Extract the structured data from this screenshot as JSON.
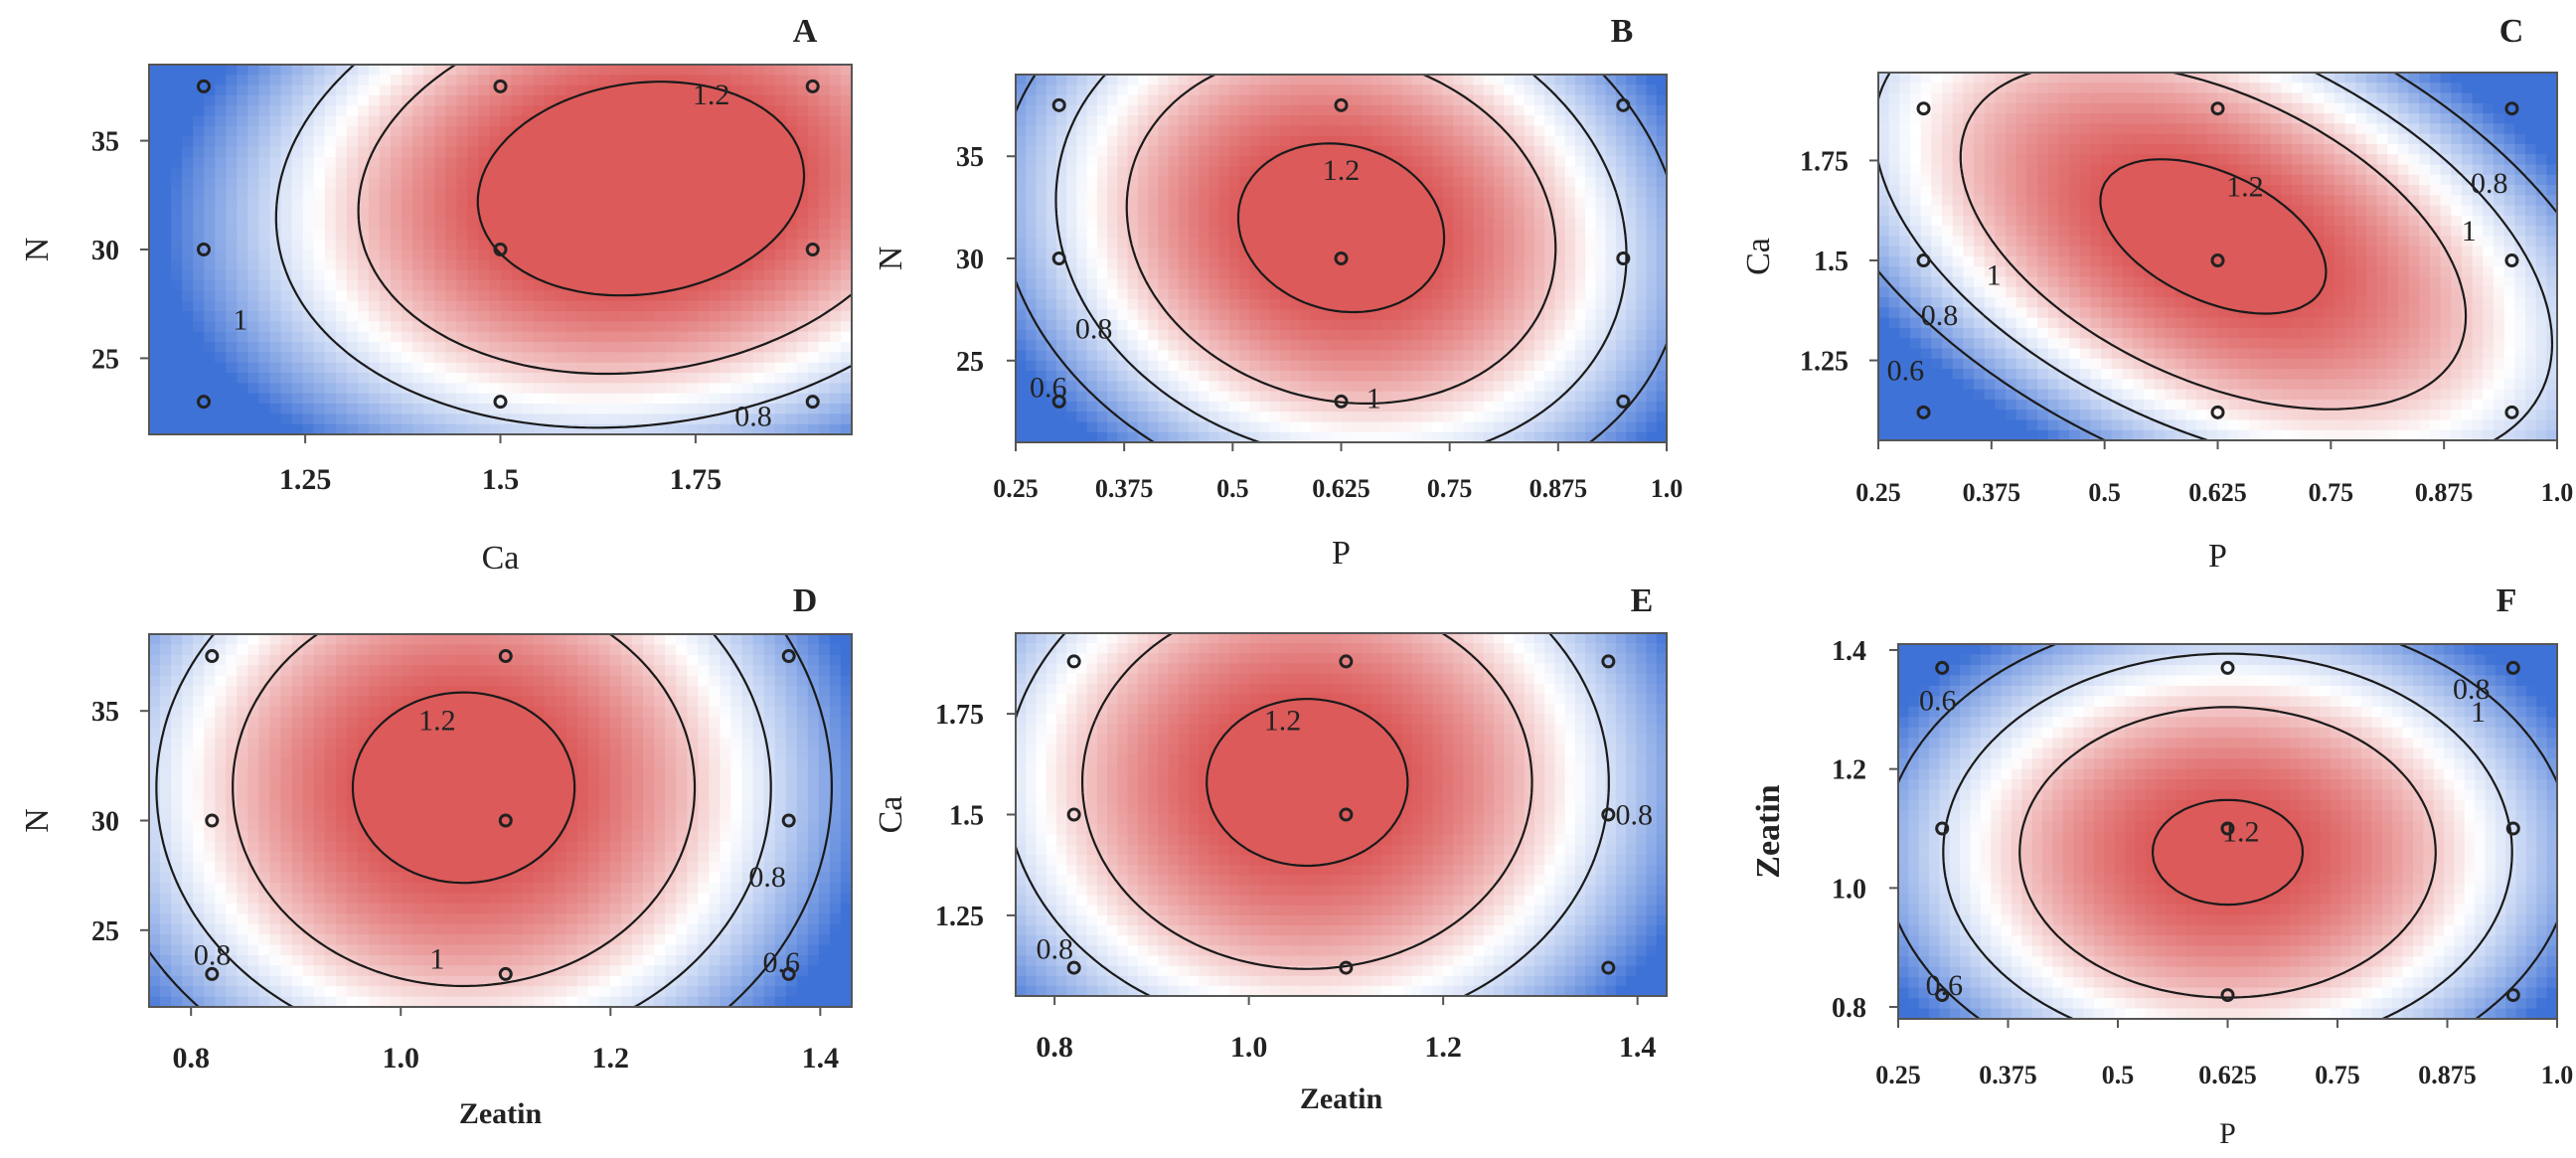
{
  "figure": {
    "colors": {
      "low": "#3f72d6",
      "mid": "#ffffff",
      "high": "#dc5a5a",
      "contour": "#1a1a1a",
      "point": "#222222"
    }
  },
  "chart_data": [
    {
      "panel": "A",
      "type": "contour",
      "xlabel": "Ca",
      "ylabel": "N",
      "xlim": [
        1.05,
        1.95
      ],
      "ylim": [
        21.5,
        38.5
      ],
      "xticks": [
        1.25,
        1.5,
        1.75
      ],
      "xticklabels": [
        "1.25",
        "1.5",
        "1.75"
      ],
      "yticks": [
        25,
        30,
        35
      ],
      "yticklabels": [
        "25",
        "30",
        "35"
      ],
      "levels": [
        0.8,
        1,
        1.2
      ],
      "contour_labels": [
        "1.2",
        "1",
        "0.8"
      ],
      "design_points": [
        [
          1.12,
          23
        ],
        [
          1.5,
          23
        ],
        [
          1.9,
          23
        ],
        [
          1.12,
          30
        ],
        [
          1.5,
          30
        ],
        [
          1.9,
          30
        ],
        [
          1.12,
          37.5
        ],
        [
          1.5,
          37.5
        ],
        [
          1.9,
          37.5
        ]
      ],
      "model": {
        "x0": 1.68,
        "y0": 32.8,
        "ax": 0.42,
        "ay": 10.2,
        "rot": 0.25,
        "peak": 1.3
      }
    },
    {
      "panel": "B",
      "type": "contour",
      "xlabel": "P",
      "ylabel": "N",
      "xlim": [
        0.25,
        1.0
      ],
      "ylim": [
        21,
        39
      ],
      "xticks": [
        0.25,
        0.375,
        0.5,
        0.625,
        0.75,
        0.875,
        1.0
      ],
      "xticklabels": [
        "0.25",
        "0.375",
        "0.5",
        "0.625",
        "0.75",
        "0.875",
        "1.0"
      ],
      "yticks": [
        25,
        30,
        35
      ],
      "yticklabels": [
        "25",
        "30",
        "35"
      ],
      "levels": [
        0.6,
        0.8,
        1,
        1.2
      ],
      "contour_labels": [
        "1.2",
        "0.8",
        "0.6",
        "1"
      ],
      "design_points": [
        [
          0.3,
          23
        ],
        [
          0.625,
          23
        ],
        [
          0.95,
          23
        ],
        [
          0.3,
          30
        ],
        [
          0.625,
          30
        ],
        [
          0.95,
          30
        ],
        [
          0.3,
          37.5
        ],
        [
          0.625,
          37.5
        ],
        [
          0.95,
          37.5
        ]
      ],
      "model": {
        "x0": 0.625,
        "y0": 31.5,
        "ax": 0.31,
        "ay": 11,
        "rot": -0.15,
        "peak": 1.26
      }
    },
    {
      "panel": "C",
      "type": "contour",
      "xlabel": "P",
      "ylabel": "Ca",
      "xlim": [
        0.25,
        1.0
      ],
      "ylim": [
        1.05,
        1.97
      ],
      "xticks": [
        0.25,
        0.375,
        0.5,
        0.625,
        0.75,
        0.875,
        1.0
      ],
      "xticklabels": [
        "0.25",
        "0.375",
        "0.5",
        "0.625",
        "0.75",
        "0.875",
        "1.0"
      ],
      "yticks": [
        1.25,
        1.5,
        1.75
      ],
      "yticklabels": [
        "1.25",
        "1.5",
        "1.75"
      ],
      "levels": [
        0.6,
        0.8,
        1,
        1.2
      ],
      "contour_labels": [
        "1.2",
        "0.8",
        "1",
        "0.8",
        "0.6",
        "1"
      ],
      "design_points": [
        [
          0.3,
          1.12
        ],
        [
          0.625,
          1.12
        ],
        [
          0.95,
          1.12
        ],
        [
          0.3,
          1.5
        ],
        [
          0.625,
          1.5
        ],
        [
          0.95,
          1.5
        ],
        [
          0.3,
          1.88
        ],
        [
          0.625,
          1.88
        ],
        [
          0.95,
          1.88
        ]
      ],
      "model": {
        "x0": 0.62,
        "y0": 1.56,
        "ax": 0.29,
        "ay": 0.62,
        "rot": -0.55,
        "peak": 1.25
      }
    },
    {
      "panel": "D",
      "type": "contour",
      "xlabel": "Zeatin",
      "ylabel": "N",
      "xlim": [
        0.76,
        1.43
      ],
      "ylim": [
        21.5,
        38.5
      ],
      "xticks": [
        0.8,
        1.0,
        1.2,
        1.4
      ],
      "xticklabels": [
        "0.8",
        "1.0",
        "1.2",
        "1.4"
      ],
      "yticks": [
        25,
        30,
        35
      ],
      "yticklabels": [
        "25",
        "30",
        "35"
      ],
      "levels": [
        0.6,
        0.8,
        1,
        1.2
      ],
      "contour_labels": [
        "1.2",
        "1",
        "0.8",
        "0.8",
        "0.6"
      ],
      "design_points": [
        [
          0.82,
          23
        ],
        [
          1.1,
          23
        ],
        [
          1.37,
          23
        ],
        [
          0.82,
          30
        ],
        [
          1.1,
          30
        ],
        [
          1.37,
          30
        ],
        [
          0.82,
          37.5
        ],
        [
          1.1,
          37.5
        ],
        [
          1.37,
          37.5
        ]
      ],
      "model": {
        "x0": 1.06,
        "y0": 31.5,
        "ax": 0.28,
        "ay": 11.5,
        "rot": 0,
        "peak": 1.26
      }
    },
    {
      "panel": "E",
      "type": "contour",
      "xlabel": "Zeatin",
      "ylabel": "Ca",
      "xlim": [
        0.76,
        1.43
      ],
      "ylim": [
        1.05,
        1.95
      ],
      "xticks": [
        0.8,
        1.0,
        1.2,
        1.4
      ],
      "xticklabels": [
        "0.8",
        "1.0",
        "1.2",
        "1.4"
      ],
      "yticks": [
        1.25,
        1.5,
        1.75
      ],
      "yticklabels": [
        "1.25",
        "1.5",
        "1.75"
      ],
      "levels": [
        0.8,
        1,
        1.2
      ],
      "contour_labels": [
        "1.2",
        "0.8",
        "0.8"
      ],
      "design_points": [
        [
          0.82,
          1.12
        ],
        [
          1.1,
          1.12
        ],
        [
          1.37,
          1.12
        ],
        [
          0.82,
          1.5
        ],
        [
          1.1,
          1.5
        ],
        [
          1.37,
          1.5
        ],
        [
          0.82,
          1.88
        ],
        [
          1.1,
          1.88
        ],
        [
          1.37,
          1.88
        ]
      ],
      "model": {
        "x0": 1.06,
        "y0": 1.58,
        "ax": 0.3,
        "ay": 0.6,
        "rot": 0,
        "peak": 1.25
      }
    },
    {
      "panel": "F",
      "type": "contour",
      "xlabel": "P",
      "ylabel": "Zeatin",
      "xlim": [
        0.25,
        1.0
      ],
      "ylim": [
        0.78,
        1.41
      ],
      "xticks": [
        0.25,
        0.375,
        0.5,
        0.625,
        0.75,
        0.875,
        1.0
      ],
      "xticklabels": [
        "0.25",
        "0.375",
        "0.5",
        "0.625",
        "0.75",
        "0.875",
        "1.0"
      ],
      "yticks": [
        0.8,
        1.0,
        1.2,
        1.4
      ],
      "yticklabels": [
        "0.8",
        "1.0",
        "1.2",
        "1.4"
      ],
      "levels": [
        0.6,
        0.8,
        1,
        1.2
      ],
      "contour_labels": [
        "1.2",
        "1",
        "0.6",
        "0.8",
        "0.6"
      ],
      "design_points": [
        [
          0.3,
          0.82
        ],
        [
          0.625,
          0.82
        ],
        [
          0.95,
          0.82
        ],
        [
          0.3,
          1.1
        ],
        [
          0.625,
          1.1
        ],
        [
          0.95,
          1.1
        ],
        [
          0.3,
          1.37
        ],
        [
          0.625,
          1.37
        ],
        [
          0.95,
          1.37
        ]
      ],
      "model": {
        "x0": 0.625,
        "y0": 1.06,
        "ax": 0.32,
        "ay": 0.33,
        "rot": 0,
        "peak": 1.23
      }
    }
  ]
}
